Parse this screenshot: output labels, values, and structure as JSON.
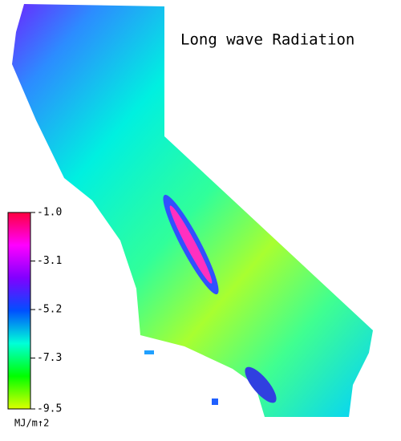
{
  "map": {
    "title": "Long wave Radiation",
    "colorbar": {
      "range": [
        -9.5,
        -1.0
      ],
      "ticks": [
        {
          "value": -1.0,
          "label": "-1.0"
        },
        -3.1,
        -5.2,
        -7.3,
        -9.5
      ],
      "unit": "MJ/m↑2",
      "colors": [
        "#dcff00",
        "#00ff00",
        "#00ffd8",
        "#0050ff",
        "#8000ff",
        "#ff00ff",
        "#ff0040"
      ]
    }
  }
}
